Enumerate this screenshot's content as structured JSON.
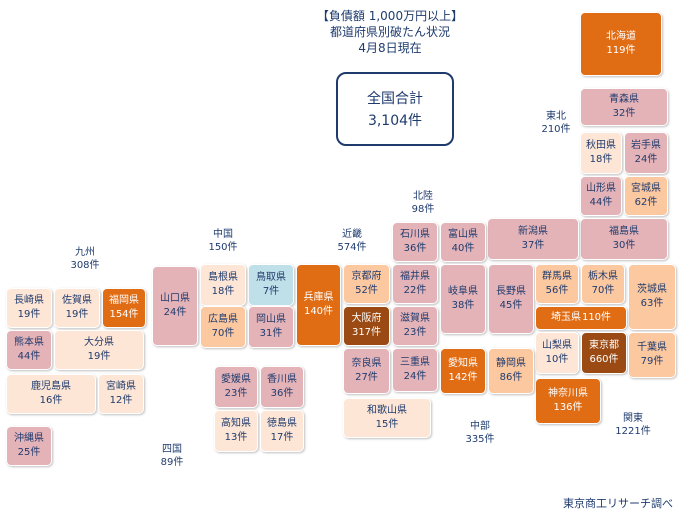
{
  "title": {
    "line1": "【負債額 1,000万円以上】",
    "line2": "都道府県別破たん状況",
    "line3": "4月8日現在"
  },
  "total": {
    "label": "全国合計",
    "value": "3,104件"
  },
  "source": "東京商工リサーチ調べ",
  "colors": {
    "high": "#e06c14",
    "highest": "#9a4a12",
    "mid": "#fcc8a0",
    "low": "#e4b3b8",
    "lowest": "#fde6d6",
    "min": "#bfe0e8"
  },
  "chart_data": {
    "type": "table",
    "title": "【負債額 1,000万円以上】都道府県別破たん状況",
    "regions": [
      {
        "id": "kyushu",
        "name": "九州",
        "count": "308件"
      },
      {
        "id": "chugoku",
        "name": "中国",
        "count": "150件"
      },
      {
        "id": "shikoku",
        "name": "四国",
        "count": "89件"
      },
      {
        "id": "kinki",
        "name": "近畿",
        "count": "574件"
      },
      {
        "id": "hokuriku",
        "name": "北陸",
        "count": "98件"
      },
      {
        "id": "chubu",
        "name": "中部",
        "count": "335件"
      },
      {
        "id": "kanto",
        "name": "関東",
        "count": "1221件"
      },
      {
        "id": "tohoku",
        "name": "東北",
        "count": "210件"
      }
    ],
    "prefectures": [
      {
        "id": "hokkaido",
        "name": "北海道",
        "count": "119件",
        "tone": "high"
      },
      {
        "id": "aomori",
        "name": "青森県",
        "count": "32件",
        "tone": "low"
      },
      {
        "id": "akita",
        "name": "秋田県",
        "count": "18件",
        "tone": "lowest"
      },
      {
        "id": "iwate",
        "name": "岩手県",
        "count": "24件",
        "tone": "low"
      },
      {
        "id": "yamagata",
        "name": "山形県",
        "count": "44件",
        "tone": "low"
      },
      {
        "id": "miyagi",
        "name": "宮城県",
        "count": "62件",
        "tone": "mid"
      },
      {
        "id": "fukushima",
        "name": "福島県",
        "count": "30件",
        "tone": "low"
      },
      {
        "id": "niigata",
        "name": "新潟県",
        "count": "37件",
        "tone": "low"
      },
      {
        "id": "ishikawa",
        "name": "石川県",
        "count": "36件",
        "tone": "low"
      },
      {
        "id": "toyama",
        "name": "富山県",
        "count": "40件",
        "tone": "low"
      },
      {
        "id": "fukui",
        "name": "福井県",
        "count": "22件",
        "tone": "low"
      },
      {
        "id": "nagano",
        "name": "長野県",
        "count": "45件",
        "tone": "low"
      },
      {
        "id": "gifu",
        "name": "岐阜県",
        "count": "38件",
        "tone": "low"
      },
      {
        "id": "gunma",
        "name": "群馬県",
        "count": "56件",
        "tone": "mid"
      },
      {
        "id": "tochigi",
        "name": "栃木県",
        "count": "70件",
        "tone": "mid"
      },
      {
        "id": "ibaraki",
        "name": "茨城県",
        "count": "63件",
        "tone": "mid"
      },
      {
        "id": "saitama",
        "name": "埼玉県",
        "count": "110件",
        "tone": "high"
      },
      {
        "id": "yamanashi",
        "name": "山梨県",
        "count": "10件",
        "tone": "lowest"
      },
      {
        "id": "tokyo",
        "name": "東京都",
        "count": "660件",
        "tone": "highest"
      },
      {
        "id": "chiba",
        "name": "千葉県",
        "count": "79件",
        "tone": "mid"
      },
      {
        "id": "kanagawa",
        "name": "神奈川県",
        "count": "136件",
        "tone": "high"
      },
      {
        "id": "shizuoka",
        "name": "静岡県",
        "count": "86件",
        "tone": "mid"
      },
      {
        "id": "aichi",
        "name": "愛知県",
        "count": "142件",
        "tone": "high"
      },
      {
        "id": "mie",
        "name": "三重県",
        "count": "24件",
        "tone": "low"
      },
      {
        "id": "shiga",
        "name": "滋賀県",
        "count": "23件",
        "tone": "low"
      },
      {
        "id": "kyoto",
        "name": "京都府",
        "count": "52件",
        "tone": "mid"
      },
      {
        "id": "osaka",
        "name": "大阪府",
        "count": "317件",
        "tone": "highest"
      },
      {
        "id": "nara",
        "name": "奈良県",
        "count": "27件",
        "tone": "low"
      },
      {
        "id": "wakayama",
        "name": "和歌山県",
        "count": "15件",
        "tone": "lowest"
      },
      {
        "id": "hyogo",
        "name": "兵庫県",
        "count": "140件",
        "tone": "high"
      },
      {
        "id": "tottori",
        "name": "鳥取県",
        "count": "7件",
        "tone": "min"
      },
      {
        "id": "shimane",
        "name": "島根県",
        "count": "18件",
        "tone": "lowest"
      },
      {
        "id": "okayama",
        "name": "岡山県",
        "count": "31件",
        "tone": "low"
      },
      {
        "id": "hiroshima",
        "name": "広島県",
        "count": "70件",
        "tone": "mid"
      },
      {
        "id": "yamaguchi",
        "name": "山口県",
        "count": "24件",
        "tone": "low"
      },
      {
        "id": "ehime",
        "name": "愛媛県",
        "count": "23件",
        "tone": "low"
      },
      {
        "id": "kagawa",
        "name": "香川県",
        "count": "36件",
        "tone": "low"
      },
      {
        "id": "kochi",
        "name": "高知県",
        "count": "13件",
        "tone": "lowest"
      },
      {
        "id": "tokushima",
        "name": "徳島県",
        "count": "17件",
        "tone": "lowest"
      },
      {
        "id": "fukuoka",
        "name": "福岡県",
        "count": "154件",
        "tone": "high"
      },
      {
        "id": "saga",
        "name": "佐賀県",
        "count": "19件",
        "tone": "lowest"
      },
      {
        "id": "nagasaki",
        "name": "長崎県",
        "count": "19件",
        "tone": "lowest"
      },
      {
        "id": "kumamoto",
        "name": "熊本県",
        "count": "44件",
        "tone": "low"
      },
      {
        "id": "oita",
        "name": "大分県",
        "count": "19件",
        "tone": "lowest"
      },
      {
        "id": "kagoshima",
        "name": "鹿児島県",
        "count": "16件",
        "tone": "lowest"
      },
      {
        "id": "miyazaki",
        "name": "宮崎県",
        "count": "12件",
        "tone": "lowest"
      },
      {
        "id": "okinawa",
        "name": "沖縄県",
        "count": "25件",
        "tone": "low"
      }
    ]
  }
}
